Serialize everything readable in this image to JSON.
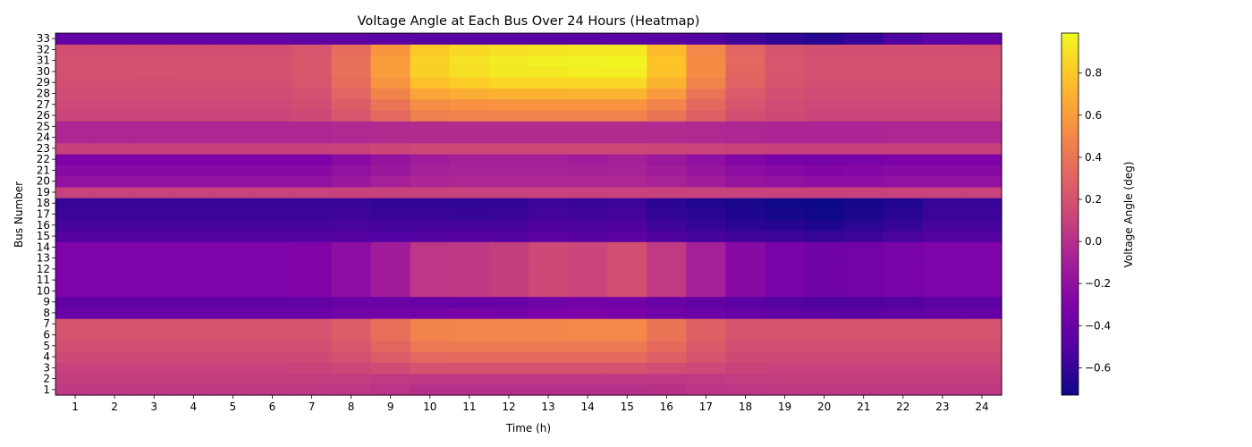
{
  "chart_data": {
    "type": "heatmap",
    "title": "Voltage Angle at Each Bus Over 24 Hours (Heatmap)",
    "xlabel": "Time (h)",
    "ylabel": "Bus Number",
    "colorbar_label": "Voltage Angle (deg)",
    "colormap": "plasma",
    "x": [
      1,
      2,
      3,
      4,
      5,
      6,
      7,
      8,
      9,
      10,
      11,
      12,
      13,
      14,
      15,
      16,
      17,
      18,
      19,
      20,
      21,
      22,
      23,
      24
    ],
    "y": [
      1,
      2,
      3,
      4,
      5,
      6,
      7,
      8,
      9,
      10,
      11,
      12,
      13,
      14,
      15,
      16,
      17,
      18,
      19,
      20,
      21,
      22,
      23,
      24,
      25,
      26,
      27,
      28,
      29,
      30,
      31,
      32,
      33
    ],
    "vmin": -0.73,
    "vmax": 0.99,
    "colorbar_ticks": [
      -0.6,
      -0.4,
      -0.2,
      0.0,
      0.2,
      0.4,
      0.6,
      0.8
    ],
    "colorbar_tick_labels": [
      "−0.6",
      "−0.4",
      "−0.2",
      "0.0",
      "0.2",
      "0.4",
      "0.6",
      "0.8"
    ],
    "bus_profiles": {
      "1": [
        0.05,
        0.05,
        0.05,
        0.05,
        0.05,
        0.05,
        0.05,
        0.04,
        0.02,
        0.0,
        0.0,
        0.0,
        0.0,
        0.0,
        0.0,
        0.01,
        0.03,
        0.04,
        0.05,
        0.05,
        0.05,
        0.05,
        0.05,
        0.05
      ],
      "2": [
        0.08,
        0.08,
        0.08,
        0.08,
        0.08,
        0.08,
        0.08,
        0.07,
        0.06,
        0.05,
        0.05,
        0.05,
        0.05,
        0.05,
        0.05,
        0.05,
        0.06,
        0.07,
        0.08,
        0.08,
        0.08,
        0.08,
        0.08,
        0.08
      ],
      "3": [
        0.1,
        0.1,
        0.1,
        0.1,
        0.1,
        0.1,
        0.11,
        0.13,
        0.16,
        0.2,
        0.2,
        0.2,
        0.2,
        0.2,
        0.2,
        0.17,
        0.14,
        0.11,
        0.1,
        0.1,
        0.1,
        0.1,
        0.1,
        0.1
      ],
      "4": [
        0.14,
        0.14,
        0.14,
        0.14,
        0.14,
        0.14,
        0.15,
        0.19,
        0.26,
        0.33,
        0.34,
        0.34,
        0.34,
        0.34,
        0.34,
        0.28,
        0.2,
        0.15,
        0.14,
        0.14,
        0.14,
        0.14,
        0.14,
        0.14
      ],
      "5": [
        0.17,
        0.17,
        0.17,
        0.17,
        0.17,
        0.17,
        0.18,
        0.23,
        0.32,
        0.42,
        0.43,
        0.43,
        0.43,
        0.43,
        0.43,
        0.35,
        0.25,
        0.18,
        0.17,
        0.17,
        0.17,
        0.17,
        0.17,
        0.17
      ],
      "6": [
        0.2,
        0.2,
        0.2,
        0.2,
        0.2,
        0.2,
        0.21,
        0.26,
        0.37,
        0.48,
        0.49,
        0.49,
        0.49,
        0.5,
        0.5,
        0.4,
        0.28,
        0.21,
        0.2,
        0.2,
        0.2,
        0.2,
        0.2,
        0.2
      ],
      "7": [
        0.2,
        0.2,
        0.2,
        0.2,
        0.2,
        0.2,
        0.21,
        0.26,
        0.37,
        0.48,
        0.49,
        0.49,
        0.49,
        0.5,
        0.5,
        0.4,
        0.28,
        0.21,
        0.2,
        0.2,
        0.2,
        0.2,
        0.2,
        0.2
      ],
      "8": [
        -0.4,
        -0.4,
        -0.4,
        -0.4,
        -0.4,
        -0.4,
        -0.4,
        -0.37,
        -0.36,
        -0.35,
        -0.33,
        -0.35,
        -0.31,
        -0.3,
        -0.32,
        -0.37,
        -0.4,
        -0.42,
        -0.44,
        -0.45,
        -0.46,
        -0.44,
        -0.42,
        -0.42
      ],
      "9": [
        -0.44,
        -0.44,
        -0.44,
        -0.44,
        -0.44,
        -0.44,
        -0.44,
        -0.4,
        -0.4,
        -0.42,
        -0.42,
        -0.42,
        -0.38,
        -0.35,
        -0.36,
        -0.4,
        -0.44,
        -0.47,
        -0.5,
        -0.52,
        -0.52,
        -0.5,
        -0.46,
        -0.46
      ],
      "10": [
        -0.3,
        -0.3,
        -0.3,
        -0.3,
        -0.3,
        -0.3,
        -0.29,
        -0.22,
        -0.12,
        0.04,
        0.05,
        0.08,
        0.14,
        0.12,
        0.18,
        0.06,
        -0.1,
        -0.25,
        -0.33,
        -0.37,
        -0.35,
        -0.33,
        -0.3,
        -0.3
      ],
      "11": [
        -0.3,
        -0.3,
        -0.3,
        -0.3,
        -0.3,
        -0.3,
        -0.29,
        -0.22,
        -0.12,
        0.04,
        0.05,
        0.08,
        0.14,
        0.12,
        0.18,
        0.06,
        -0.1,
        -0.25,
        -0.33,
        -0.37,
        -0.35,
        -0.33,
        -0.3,
        -0.3
      ],
      "12": [
        -0.3,
        -0.3,
        -0.3,
        -0.3,
        -0.3,
        -0.3,
        -0.29,
        -0.22,
        -0.12,
        0.04,
        0.05,
        0.08,
        0.14,
        0.12,
        0.18,
        0.06,
        -0.1,
        -0.25,
        -0.33,
        -0.37,
        -0.35,
        -0.33,
        -0.3,
        -0.3
      ],
      "13": [
        -0.3,
        -0.3,
        -0.3,
        -0.3,
        -0.3,
        -0.3,
        -0.29,
        -0.22,
        -0.12,
        0.04,
        0.05,
        0.08,
        0.14,
        0.12,
        0.18,
        0.06,
        -0.1,
        -0.25,
        -0.33,
        -0.37,
        -0.35,
        -0.33,
        -0.3,
        -0.3
      ],
      "14": [
        -0.3,
        -0.3,
        -0.3,
        -0.3,
        -0.3,
        -0.3,
        -0.29,
        -0.22,
        -0.12,
        0.04,
        0.05,
        0.08,
        0.14,
        0.12,
        0.18,
        0.06,
        -0.1,
        -0.25,
        -0.33,
        -0.37,
        -0.35,
        -0.33,
        -0.3,
        -0.3
      ],
      "15": [
        -0.5,
        -0.5,
        -0.5,
        -0.5,
        -0.5,
        -0.5,
        -0.5,
        -0.49,
        -0.51,
        -0.5,
        -0.49,
        -0.5,
        -0.46,
        -0.48,
        -0.47,
        -0.52,
        -0.55,
        -0.57,
        -0.58,
        -0.6,
        -0.58,
        -0.54,
        -0.5,
        -0.5
      ],
      "16": [
        -0.55,
        -0.55,
        -0.55,
        -0.55,
        -0.55,
        -0.55,
        -0.55,
        -0.54,
        -0.56,
        -0.55,
        -0.55,
        -0.55,
        -0.52,
        -0.53,
        -0.52,
        -0.57,
        -0.6,
        -0.63,
        -0.65,
        -0.67,
        -0.64,
        -0.6,
        -0.55,
        -0.55
      ],
      "17": [
        -0.58,
        -0.58,
        -0.58,
        -0.58,
        -0.58,
        -0.58,
        -0.58,
        -0.57,
        -0.59,
        -0.59,
        -0.6,
        -0.59,
        -0.56,
        -0.57,
        -0.56,
        -0.61,
        -0.64,
        -0.67,
        -0.7,
        -0.72,
        -0.68,
        -0.64,
        -0.58,
        -0.58
      ],
      "18": [
        -0.6,
        -0.6,
        -0.6,
        -0.6,
        -0.6,
        -0.6,
        -0.6,
        -0.59,
        -0.61,
        -0.61,
        -0.62,
        -0.61,
        -0.58,
        -0.59,
        -0.58,
        -0.63,
        -0.66,
        -0.69,
        -0.72,
        -0.73,
        -0.7,
        -0.66,
        -0.6,
        -0.6
      ],
      "19": [
        0.1,
        0.1,
        0.1,
        0.1,
        0.1,
        0.1,
        0.1,
        0.1,
        0.1,
        0.1,
        0.1,
        0.1,
        0.1,
        0.1,
        0.1,
        0.1,
        0.1,
        0.1,
        0.1,
        0.1,
        0.1,
        0.1,
        0.1,
        0.1
      ],
      "20": [
        -0.2,
        -0.2,
        -0.2,
        -0.2,
        -0.2,
        -0.2,
        -0.2,
        -0.15,
        -0.1,
        -0.06,
        -0.05,
        -0.05,
        -0.05,
        -0.05,
        -0.05,
        -0.08,
        -0.12,
        -0.18,
        -0.2,
        -0.22,
        -0.22,
        -0.2,
        -0.2,
        -0.2
      ],
      "21": [
        -0.25,
        -0.25,
        -0.25,
        -0.25,
        -0.25,
        -0.25,
        -0.25,
        -0.2,
        -0.15,
        -0.1,
        -0.08,
        -0.08,
        -0.08,
        -0.09,
        -0.08,
        -0.12,
        -0.17,
        -0.23,
        -0.26,
        -0.28,
        -0.27,
        -0.25,
        -0.25,
        -0.25
      ],
      "22": [
        -0.3,
        -0.3,
        -0.3,
        -0.3,
        -0.3,
        -0.3,
        -0.3,
        -0.24,
        -0.18,
        -0.12,
        -0.1,
        -0.1,
        -0.1,
        -0.12,
        -0.1,
        -0.15,
        -0.21,
        -0.28,
        -0.32,
        -0.34,
        -0.32,
        -0.3,
        -0.3,
        -0.3
      ],
      "23": [
        0.1,
        0.1,
        0.1,
        0.1,
        0.1,
        0.1,
        0.1,
        0.11,
        0.13,
        0.14,
        0.14,
        0.14,
        0.14,
        0.14,
        0.14,
        0.13,
        0.12,
        0.11,
        0.1,
        0.1,
        0.1,
        0.1,
        0.1,
        0.1
      ],
      "24": [
        -0.05,
        -0.05,
        -0.05,
        -0.05,
        -0.05,
        -0.05,
        -0.05,
        -0.04,
        -0.03,
        -0.02,
        -0.02,
        -0.02,
        -0.02,
        -0.02,
        -0.02,
        -0.03,
        -0.04,
        -0.05,
        -0.06,
        -0.06,
        -0.06,
        -0.05,
        -0.05,
        -0.05
      ],
      "25": [
        -0.05,
        -0.05,
        -0.05,
        -0.05,
        -0.05,
        -0.05,
        -0.05,
        -0.04,
        -0.03,
        -0.02,
        -0.02,
        -0.02,
        -0.02,
        -0.02,
        -0.02,
        -0.03,
        -0.04,
        -0.05,
        -0.06,
        -0.06,
        -0.06,
        -0.05,
        -0.05,
        -0.05
      ],
      "26": [
        0.12,
        0.12,
        0.12,
        0.12,
        0.12,
        0.12,
        0.14,
        0.22,
        0.33,
        0.45,
        0.47,
        0.47,
        0.47,
        0.47,
        0.47,
        0.4,
        0.28,
        0.18,
        0.14,
        0.12,
        0.12,
        0.12,
        0.12,
        0.12
      ],
      "27": [
        0.14,
        0.14,
        0.14,
        0.14,
        0.14,
        0.14,
        0.17,
        0.26,
        0.4,
        0.53,
        0.55,
        0.56,
        0.56,
        0.56,
        0.56,
        0.48,
        0.33,
        0.21,
        0.16,
        0.14,
        0.14,
        0.14,
        0.14,
        0.14
      ],
      "28": [
        0.16,
        0.16,
        0.16,
        0.16,
        0.16,
        0.16,
        0.19,
        0.31,
        0.48,
        0.64,
        0.68,
        0.7,
        0.7,
        0.71,
        0.71,
        0.59,
        0.4,
        0.25,
        0.18,
        0.16,
        0.16,
        0.16,
        0.16,
        0.16
      ],
      "29": [
        0.18,
        0.18,
        0.18,
        0.18,
        0.18,
        0.18,
        0.22,
        0.36,
        0.56,
        0.77,
        0.82,
        0.85,
        0.85,
        0.86,
        0.86,
        0.71,
        0.48,
        0.3,
        0.21,
        0.18,
        0.18,
        0.18,
        0.18,
        0.18
      ],
      "30": [
        0.19,
        0.19,
        0.2,
        0.19,
        0.19,
        0.19,
        0.23,
        0.38,
        0.6,
        0.83,
        0.89,
        0.92,
        0.93,
        0.95,
        0.95,
        0.77,
        0.52,
        0.32,
        0.22,
        0.19,
        0.19,
        0.19,
        0.19,
        0.19
      ],
      "31": [
        0.19,
        0.19,
        0.19,
        0.19,
        0.19,
        0.19,
        0.23,
        0.38,
        0.6,
        0.84,
        0.9,
        0.94,
        0.96,
        0.97,
        0.98,
        0.78,
        0.52,
        0.33,
        0.22,
        0.19,
        0.19,
        0.19,
        0.19,
        0.19
      ],
      "32": [
        0.18,
        0.18,
        0.18,
        0.18,
        0.18,
        0.18,
        0.22,
        0.36,
        0.57,
        0.8,
        0.86,
        0.89,
        0.91,
        0.92,
        0.92,
        0.74,
        0.5,
        0.31,
        0.21,
        0.18,
        0.18,
        0.18,
        0.18,
        0.18
      ],
      "33": [
        -0.44,
        -0.44,
        -0.44,
        -0.44,
        -0.44,
        -0.44,
        -0.45,
        -0.46,
        -0.47,
        -0.48,
        -0.49,
        -0.49,
        -0.48,
        -0.48,
        -0.47,
        -0.49,
        -0.52,
        -0.57,
        -0.62,
        -0.65,
        -0.6,
        -0.52,
        -0.46,
        -0.44
      ]
    }
  }
}
